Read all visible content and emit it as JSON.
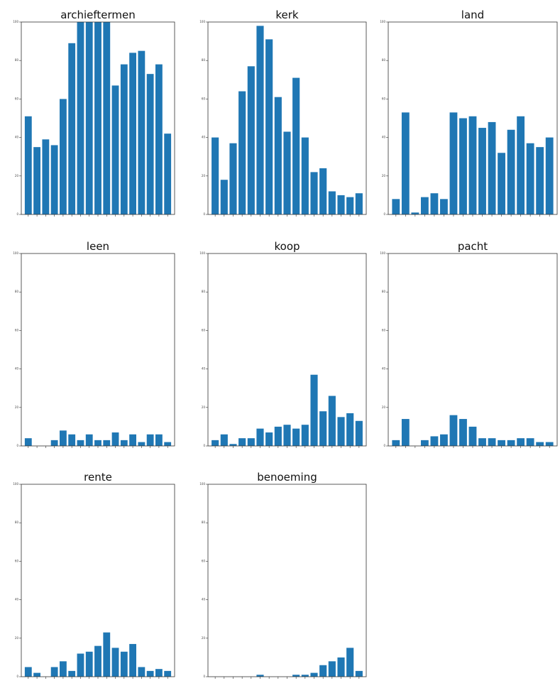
{
  "chart_data": [
    {
      "type": "bar",
      "title": "archieftermen",
      "categories": [
        null,
        null,
        null,
        null,
        null,
        null,
        null,
        null,
        null,
        null,
        null,
        null,
        null,
        null,
        null,
        null,
        null
      ],
      "values": [
        51,
        35,
        39,
        36,
        60,
        89,
        100,
        100,
        100,
        100,
        67,
        78,
        84,
        85,
        73,
        78,
        42
      ],
      "color": "#1f77b4",
      "ylim": [
        0,
        100
      ],
      "yticks": [
        0,
        20,
        40,
        60,
        80,
        100
      ]
    },
    {
      "type": "bar",
      "title": "kerk",
      "categories": [
        null,
        null,
        null,
        null,
        null,
        null,
        null,
        null,
        null,
        null,
        null,
        null,
        null,
        null,
        null,
        null,
        null
      ],
      "values": [
        40,
        18,
        37,
        64,
        77,
        98,
        91,
        61,
        43,
        71,
        40,
        22,
        24,
        12,
        10,
        9,
        11
      ],
      "color": "#1f77b4",
      "ylim": [
        0,
        100
      ],
      "yticks": [
        0,
        20,
        40,
        60,
        80,
        100
      ]
    },
    {
      "type": "bar",
      "title": "land",
      "categories": [
        null,
        null,
        null,
        null,
        null,
        null,
        null,
        null,
        null,
        null,
        null,
        null,
        null,
        null,
        null,
        null,
        null
      ],
      "values": [
        8,
        53,
        1,
        9,
        11,
        8,
        53,
        50,
        51,
        45,
        48,
        32,
        44,
        51,
        37,
        35,
        40
      ],
      "color": "#1f77b4",
      "ylim": [
        0,
        100
      ],
      "yticks": [
        0,
        20,
        40,
        60,
        80,
        100
      ]
    },
    {
      "type": "bar",
      "title": "leen",
      "categories": [
        null,
        null,
        null,
        null,
        null,
        null,
        null,
        null,
        null,
        null,
        null,
        null,
        null,
        null,
        null,
        null,
        null
      ],
      "values": [
        4,
        0,
        0,
        3,
        8,
        6,
        3,
        6,
        3,
        3,
        7,
        3,
        6,
        2,
        6,
        6,
        2
      ],
      "color": "#1f77b4",
      "ylim": [
        0,
        100
      ],
      "yticks": [
        0,
        20,
        40,
        60,
        80,
        100
      ]
    },
    {
      "type": "bar",
      "title": "koop",
      "categories": [
        null,
        null,
        null,
        null,
        null,
        null,
        null,
        null,
        null,
        null,
        null,
        null,
        null,
        null,
        null,
        null,
        null
      ],
      "values": [
        3,
        6,
        1,
        4,
        4,
        9,
        7,
        10,
        11,
        9,
        11,
        37,
        18,
        26,
        15,
        17,
        13
      ],
      "color": "#1f77b4",
      "ylim": [
        0,
        100
      ],
      "yticks": [
        0,
        20,
        40,
        60,
        80,
        100
      ]
    },
    {
      "type": "bar",
      "title": "pacht",
      "categories": [
        null,
        null,
        null,
        null,
        null,
        null,
        null,
        null,
        null,
        null,
        null,
        null,
        null,
        null,
        null,
        null,
        null
      ],
      "values": [
        3,
        14,
        0,
        3,
        5,
        6,
        16,
        14,
        10,
        4,
        4,
        3,
        3,
        4,
        4,
        2,
        2
      ],
      "color": "#1f77b4",
      "ylim": [
        0,
        100
      ],
      "yticks": [
        0,
        20,
        40,
        60,
        80,
        100
      ]
    },
    {
      "type": "bar",
      "title": "rente",
      "categories": [
        null,
        null,
        null,
        null,
        null,
        null,
        null,
        null,
        null,
        null,
        null,
        null,
        null,
        null,
        null,
        null,
        null
      ],
      "values": [
        5,
        2,
        0,
        5,
        8,
        3,
        12,
        13,
        16,
        23,
        15,
        13,
        17,
        5,
        3,
        4,
        3
      ],
      "color": "#1f77b4",
      "ylim": [
        0,
        100
      ],
      "yticks": [
        0,
        20,
        40,
        60,
        80,
        100
      ]
    },
    {
      "type": "bar",
      "title": "benoeming",
      "categories": [
        null,
        null,
        null,
        null,
        null,
        null,
        null,
        null,
        null,
        null,
        null,
        null,
        null,
        null,
        null,
        null,
        null
      ],
      "values": [
        0,
        0,
        0,
        0,
        0,
        1,
        0,
        0,
        0,
        1,
        1,
        2,
        6,
        8,
        10,
        15,
        3
      ],
      "color": "#1f77b4",
      "ylim": [
        0,
        100
      ],
      "yticks": [
        0,
        20,
        40,
        60,
        80,
        100
      ]
    }
  ]
}
